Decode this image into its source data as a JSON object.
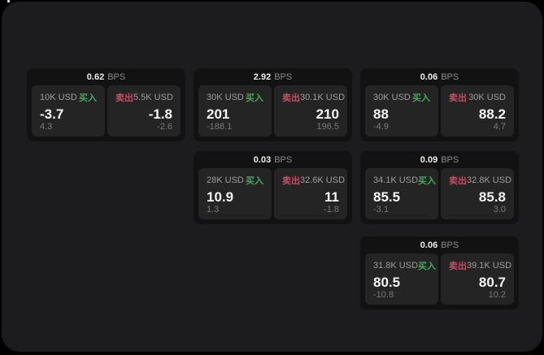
{
  "labels": {
    "bps": "BPS",
    "buy": "买入",
    "sell": "卖出"
  },
  "colors": {
    "background": "#000000",
    "window": "#1c1c1e",
    "card": "#121212",
    "panel": "#242425",
    "buy_green": "#46a55c",
    "sell_red": "#c44f63",
    "value_white": "#f5f5f5",
    "label_gray": "#9d9d9d"
  },
  "cards": [
    {
      "bps": "0.62",
      "buy": {
        "amount": "10K USD",
        "value": "-3.7",
        "delta": "4.3"
      },
      "sell": {
        "amount": "5.5K USD",
        "value": "-1.8",
        "delta": "-2.6"
      }
    },
    {
      "bps": "2.92",
      "buy": {
        "amount": "30K USD",
        "value": "201",
        "delta": "-188.1"
      },
      "sell": {
        "amount": "30.1K USD",
        "value": "210",
        "delta": "196.5"
      }
    },
    {
      "bps": "0.06",
      "buy": {
        "amount": "30K USD",
        "value": "88",
        "delta": "-4.9"
      },
      "sell": {
        "amount": "30K USD",
        "value": "88.2",
        "delta": "4.7"
      }
    },
    {
      "bps": "0.03",
      "buy": {
        "amount": "28K USD",
        "value": "10.9",
        "delta": "1.3"
      },
      "sell": {
        "amount": "32.6K USD",
        "value": "11",
        "delta": "-1.8"
      }
    },
    {
      "bps": "0.09",
      "buy": {
        "amount": "34.1K USD",
        "value": "85.5",
        "delta": "-3.1"
      },
      "sell": {
        "amount": "32.8K USD",
        "value": "85.8",
        "delta": "3.0"
      }
    },
    {
      "bps": "0.06",
      "buy": {
        "amount": "31.8K USD",
        "value": "80.5",
        "delta": "-10.8"
      },
      "sell": {
        "amount": "39.1K USD",
        "value": "80.7",
        "delta": "10.2"
      }
    }
  ]
}
